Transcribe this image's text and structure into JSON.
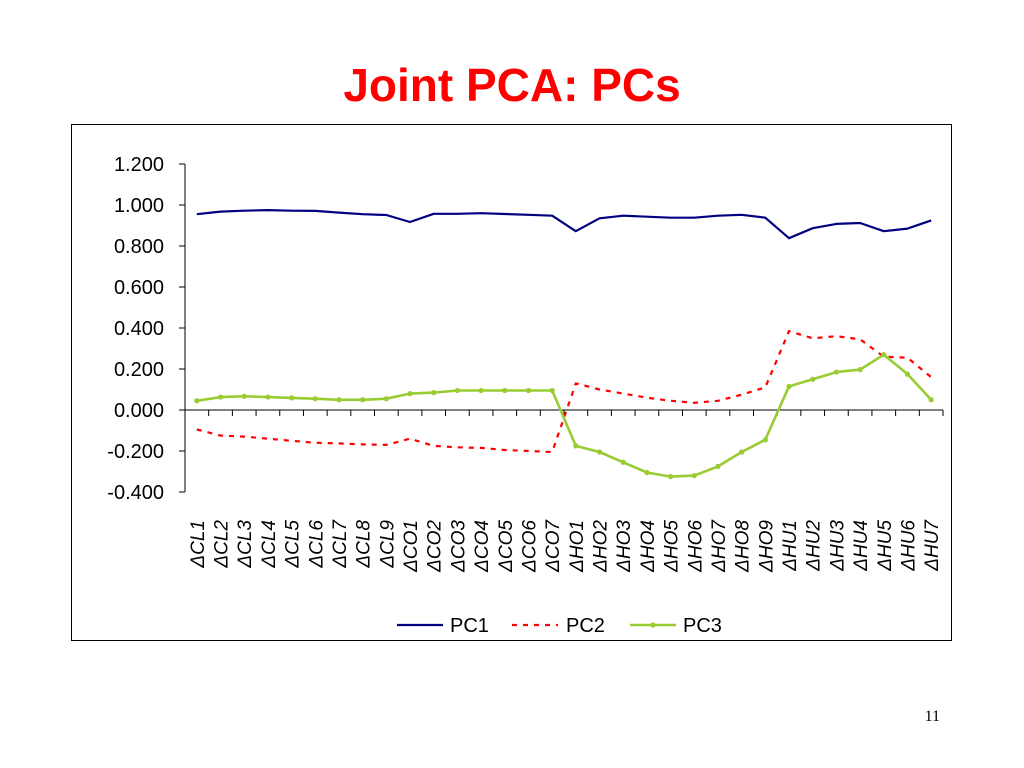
{
  "slide": {
    "title": "Joint PCA: PCs",
    "page_number": "11"
  },
  "chart_data": {
    "type": "line",
    "title": "",
    "xlabel": "",
    "ylabel": "",
    "ylim": [
      -0.4,
      1.2
    ],
    "yticks": [
      "1.200",
      "1.000",
      "0.800",
      "0.600",
      "0.400",
      "0.200",
      "0.000",
      "-0.200",
      "-0.400"
    ],
    "ytick_values": [
      1.2,
      1.0,
      0.8,
      0.6,
      0.4,
      0.2,
      0.0,
      -0.2,
      -0.4
    ],
    "grid": false,
    "legend_position": "bottom",
    "categories": [
      "ΔCL1",
      "ΔCL2",
      "ΔCL3",
      "ΔCL4",
      "ΔCL5",
      "ΔCL6",
      "ΔCL7",
      "ΔCL8",
      "ΔCL9",
      "ΔCO1",
      "ΔCO2",
      "ΔCO3",
      "ΔCO4",
      "ΔCO5",
      "ΔCO6",
      "ΔCO7",
      "ΔHO1",
      "ΔHO2",
      "ΔHO3",
      "ΔHO4",
      "ΔHO5",
      "ΔHO6",
      "ΔHO7",
      "ΔHO8",
      "ΔHO9",
      "ΔHU1",
      "ΔHU2",
      "ΔHU3",
      "ΔHU4",
      "ΔHU5",
      "ΔHU6",
      "ΔHU7"
    ],
    "series": [
      {
        "name": "PC1",
        "color": "#000080",
        "style": "solid",
        "values": [
          0.955,
          0.968,
          0.972,
          0.975,
          0.972,
          0.971,
          0.963,
          0.955,
          0.951,
          0.917,
          0.957,
          0.957,
          0.96,
          0.956,
          0.952,
          0.948,
          0.872,
          0.935,
          0.948,
          0.943,
          0.938,
          0.938,
          0.948,
          0.952,
          0.938,
          0.838,
          0.887,
          0.908,
          0.912,
          0.872,
          0.885,
          0.925
        ]
      },
      {
        "name": "PC2",
        "color": "#ff0000",
        "style": "dashed",
        "values": [
          -0.095,
          -0.125,
          -0.13,
          -0.14,
          -0.15,
          -0.16,
          -0.163,
          -0.168,
          -0.17,
          -0.14,
          -0.175,
          -0.182,
          -0.185,
          -0.195,
          -0.2,
          -0.205,
          0.13,
          0.1,
          0.08,
          0.06,
          0.045,
          0.035,
          0.045,
          0.075,
          0.11,
          0.385,
          0.35,
          0.36,
          0.345,
          0.26,
          0.255,
          0.16
        ]
      },
      {
        "name": "PC3",
        "color": "#99cc33",
        "style": "solid-marker",
        "values": [
          0.045,
          0.063,
          0.067,
          0.063,
          0.059,
          0.055,
          0.05,
          0.05,
          0.055,
          0.08,
          0.085,
          0.095,
          0.095,
          0.095,
          0.095,
          0.095,
          -0.175,
          -0.205,
          -0.255,
          -0.305,
          -0.325,
          -0.32,
          -0.275,
          -0.205,
          -0.145,
          0.115,
          0.15,
          0.185,
          0.197,
          0.27,
          0.175,
          0.05
        ]
      }
    ]
  }
}
